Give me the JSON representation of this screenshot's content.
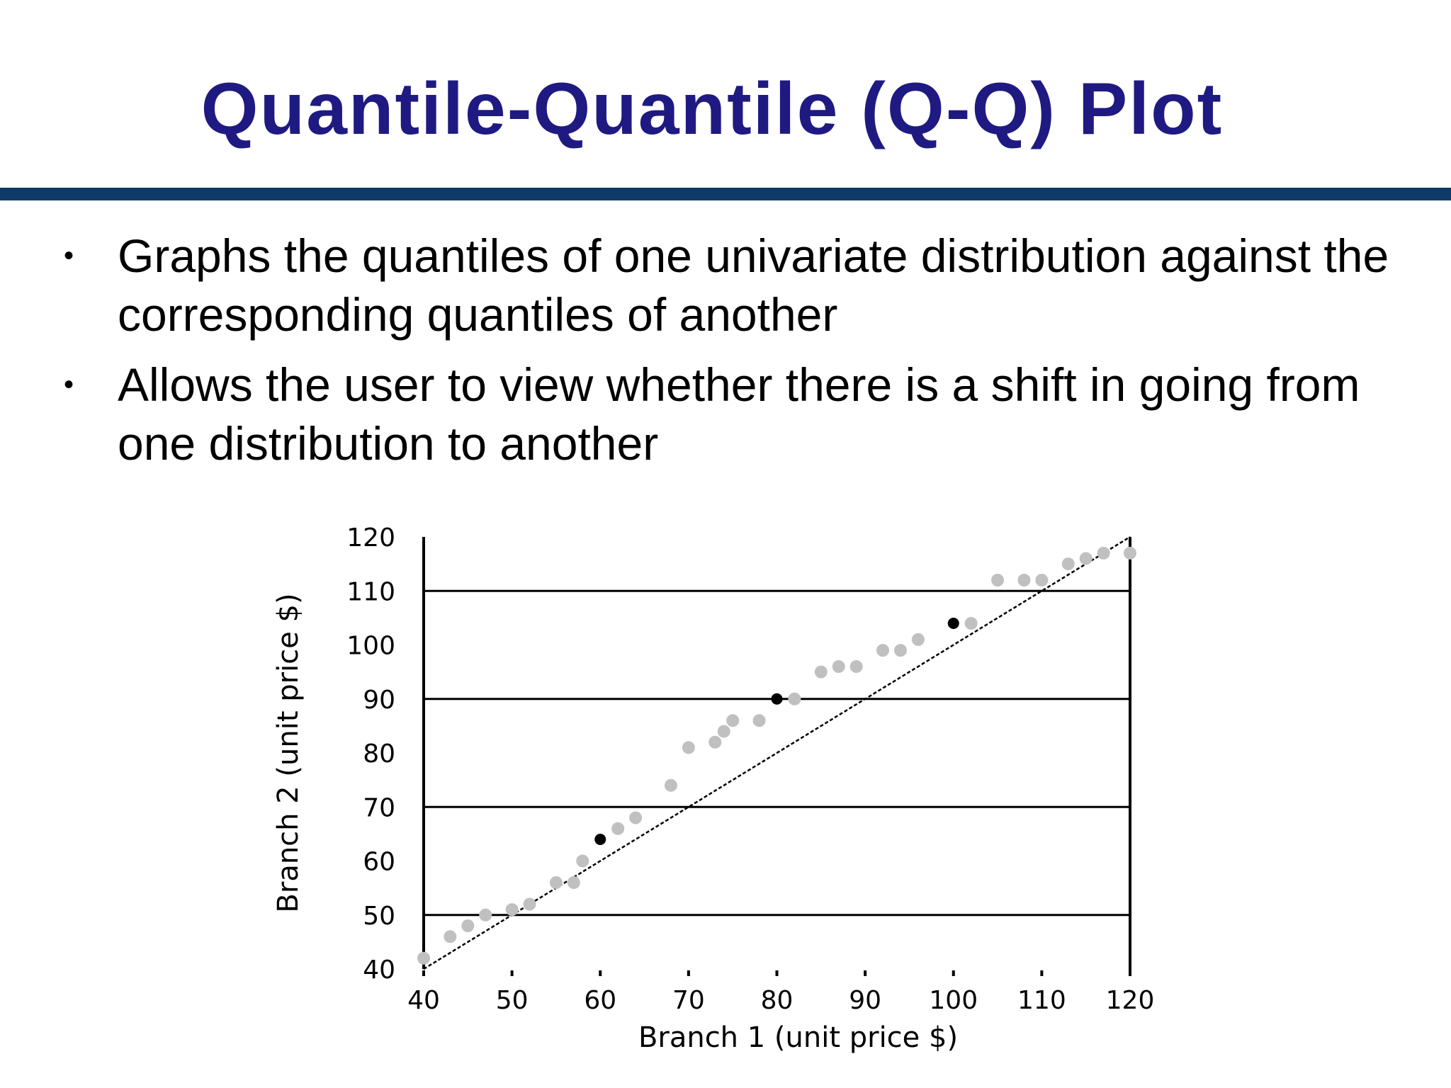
{
  "slide": {
    "title": "Quantile-Quantile (Q-Q) Plot",
    "bullets": [
      "Graphs the quantiles of one univariate distribution against the corresponding quantiles of another",
      "Allows the user to view whether there is a shift in going from one distribution to another"
    ],
    "bullet_marker": "•"
  },
  "colors": {
    "title": "#1f1a82",
    "rule": "#0f3a68",
    "points": "#c0c0c0",
    "highlight_points": "#000000",
    "reference_line": "#000000",
    "gridlines": "#000000"
  },
  "chart_data": {
    "type": "scatter",
    "xlabel": "Branch 1 (unit price $)",
    "ylabel": "Branch 2 (unit price $)",
    "xlim": [
      40,
      120
    ],
    "ylim": [
      40,
      120
    ],
    "xticks": [
      40,
      50,
      60,
      70,
      80,
      90,
      100,
      110,
      120
    ],
    "yticks": [
      40,
      50,
      60,
      70,
      80,
      90,
      100,
      110,
      120
    ],
    "gridlines_y": [
      50,
      70,
      90,
      110
    ],
    "reference_line": {
      "from": [
        40,
        40
      ],
      "to": [
        120,
        120
      ]
    },
    "series": [
      {
        "role": "quantiles",
        "x": [
          40,
          43,
          45,
          47,
          50,
          52,
          55,
          57,
          58,
          62,
          64,
          68,
          70,
          73,
          74,
          75,
          78,
          82,
          85,
          87,
          89,
          92,
          94,
          96,
          102,
          105,
          108,
          110,
          113,
          115,
          117,
          120
        ],
        "y": [
          42,
          46,
          48,
          50,
          51,
          52,
          56,
          56,
          60,
          66,
          68,
          74,
          81,
          82,
          84,
          86,
          86,
          90,
          95,
          96,
          96,
          99,
          99,
          101,
          104,
          112,
          112,
          112,
          115,
          116,
          117,
          117
        ]
      },
      {
        "role": "quantiles (highlighted)",
        "x": [
          60,
          80,
          100
        ],
        "y": [
          64,
          90,
          104
        ]
      }
    ]
  }
}
